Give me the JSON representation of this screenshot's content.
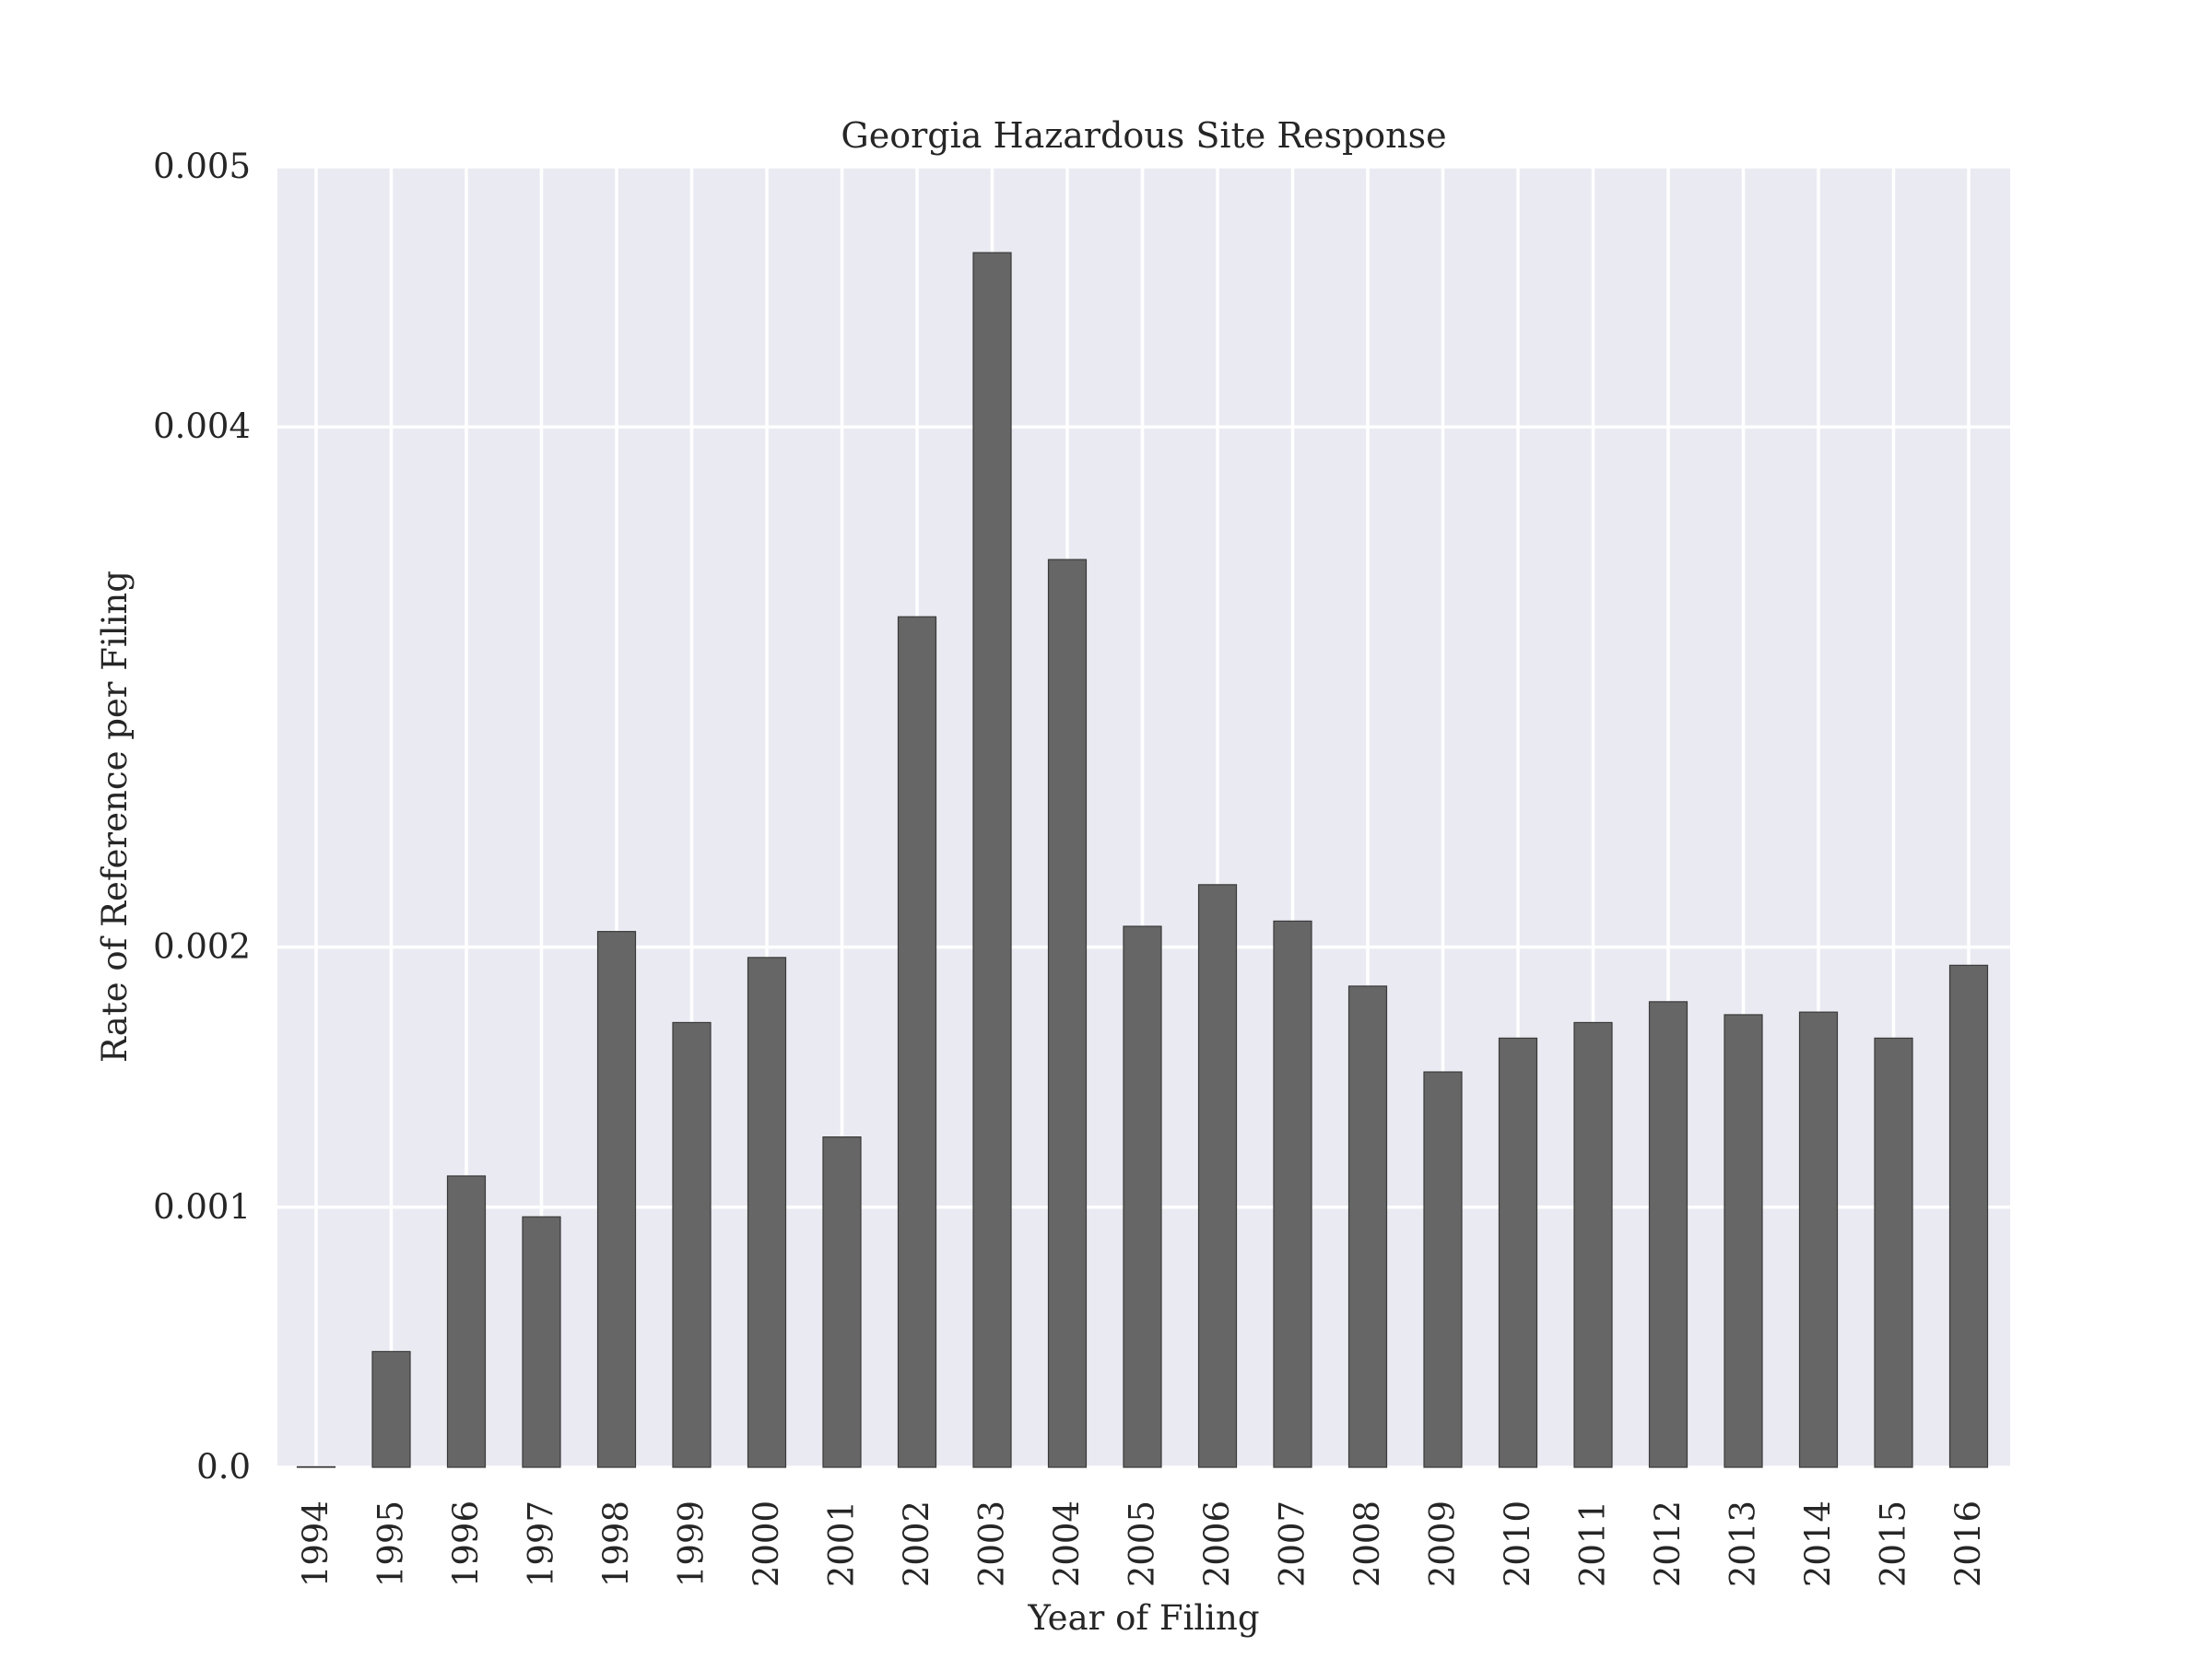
{
  "chart_data": {
    "type": "bar",
    "title": "Georgia Hazardous Site Response",
    "xlabel": "Year of Filing",
    "ylabel": "Rate of Reference per Filing",
    "categories": [
      "1994",
      "1995",
      "1996",
      "1997",
      "1998",
      "1999",
      "2000",
      "2001",
      "2002",
      "2003",
      "2004",
      "2005",
      "2006",
      "2007",
      "2008",
      "2009",
      "2010",
      "2011",
      "2012",
      "2013",
      "2014",
      "2015",
      "2016"
    ],
    "values": [
      0.0,
      0.000445,
      0.00112,
      0.000963,
      0.00206,
      0.00171,
      0.00196,
      0.00127,
      0.00327,
      0.00467,
      0.00349,
      0.00208,
      0.00224,
      0.0021,
      0.00185,
      0.00152,
      0.00165,
      0.00171,
      0.00179,
      0.00174,
      0.00175,
      0.00165,
      0.00193
    ],
    "yticks": [
      0.0,
      0.001,
      0.002,
      0.004,
      0.005
    ],
    "ytick_labels": [
      "0.0",
      "0.001",
      "0.002",
      "0.004",
      "0.005"
    ],
    "ylim": [
      0.0,
      0.005
    ],
    "grid": true,
    "colors": {
      "plot_background": "#eaeaf2",
      "grid": "#ffffff",
      "bar": "#666666",
      "bar_edge": "#3a3a3a",
      "text": "#262626"
    }
  }
}
